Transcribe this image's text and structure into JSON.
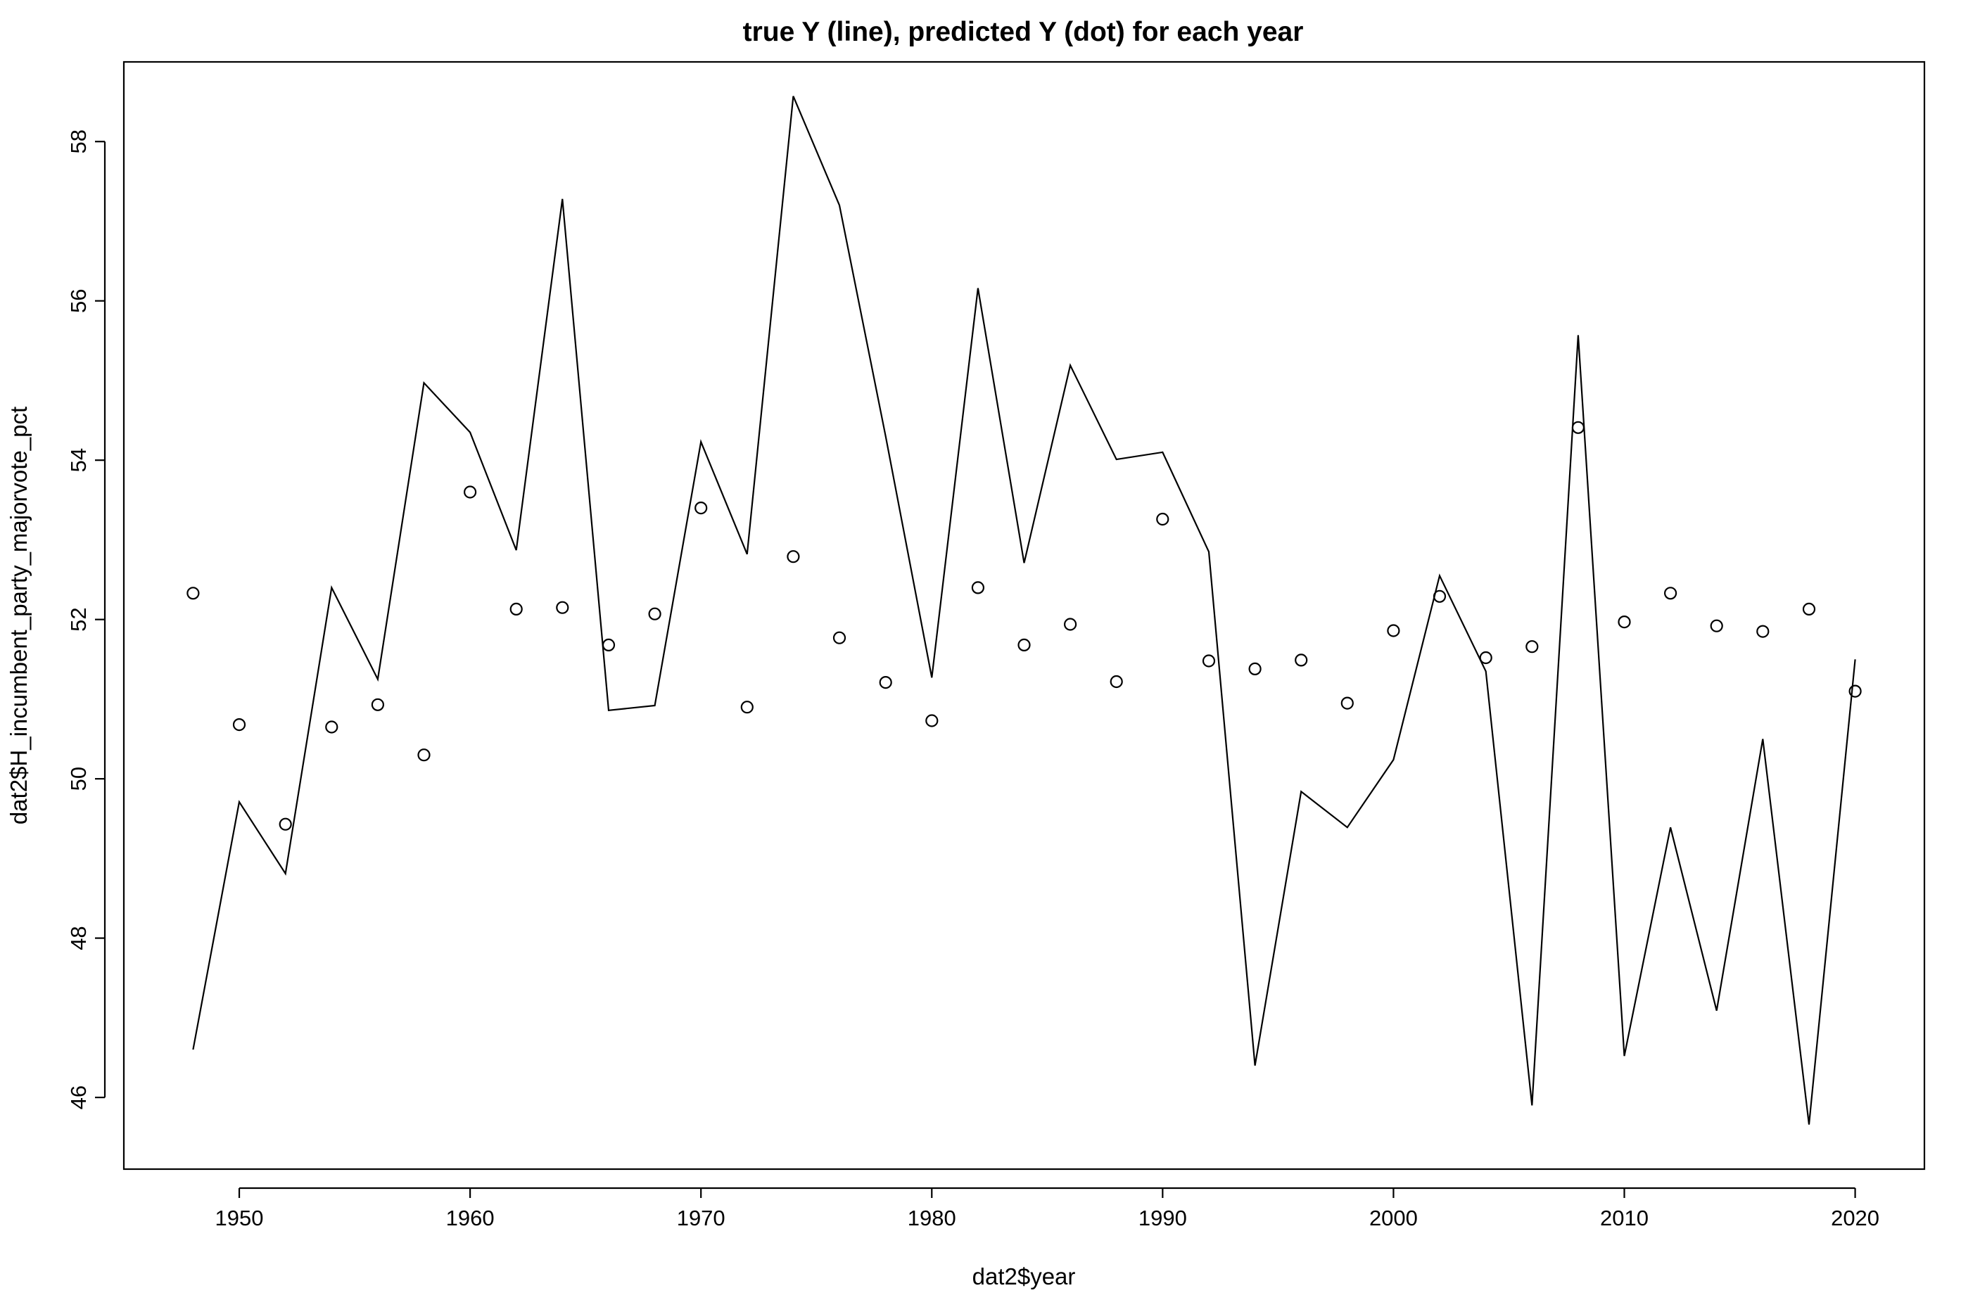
{
  "chart_data": {
    "type": "line",
    "title": "true Y (line), predicted Y (dot) for each year",
    "xlabel": "dat2$year",
    "ylabel": "dat2$H_incumbent_party_majorvote_pct",
    "xlim": [
      1945,
      2023
    ],
    "ylim": [
      45.1,
      59.0
    ],
    "x_ticks": [
      1950,
      1960,
      1970,
      1980,
      1990,
      2000,
      2010,
      2020
    ],
    "y_ticks": [
      46,
      48,
      50,
      52,
      54,
      56,
      58
    ],
    "grid": false,
    "x": [
      1948,
      1950,
      1952,
      1954,
      1956,
      1958,
      1960,
      1962,
      1964,
      1966,
      1968,
      1970,
      1972,
      1974,
      1976,
      1978,
      1980,
      1982,
      1984,
      1986,
      1988,
      1990,
      1992,
      1994,
      1996,
      1998,
      2000,
      2002,
      2004,
      2006,
      2008,
      2010,
      2012,
      2014,
      2016,
      2018,
      2020
    ],
    "series": [
      {
        "name": "true Y",
        "style": "line",
        "values": [
          46.6,
          49.71,
          48.81,
          52.4,
          51.25,
          54.97,
          54.35,
          52.87,
          57.28,
          50.86,
          50.92,
          54.23,
          52.82,
          58.57,
          57.2,
          54.3,
          51.27,
          56.16,
          52.71,
          55.19,
          54.01,
          54.1,
          52.85,
          46.4,
          49.84,
          49.39,
          50.24,
          52.55,
          51.35,
          45.9,
          55.57,
          46.52,
          49.39,
          47.09,
          50.5,
          45.66,
          51.5
        ]
      },
      {
        "name": "predicted Y",
        "style": "points",
        "values": [
          52.33,
          50.68,
          49.43,
          50.65,
          50.93,
          50.3,
          53.6,
          52.13,
          52.15,
          51.68,
          52.07,
          53.4,
          50.9,
          52.79,
          51.77,
          51.21,
          50.73,
          52.4,
          51.68,
          51.94,
          51.22,
          53.26,
          51.48,
          51.38,
          51.49,
          50.95,
          51.86,
          52.29,
          51.52,
          51.66,
          54.41,
          51.97,
          52.33,
          51.92,
          51.85,
          52.13,
          51.1
        ]
      }
    ]
  }
}
